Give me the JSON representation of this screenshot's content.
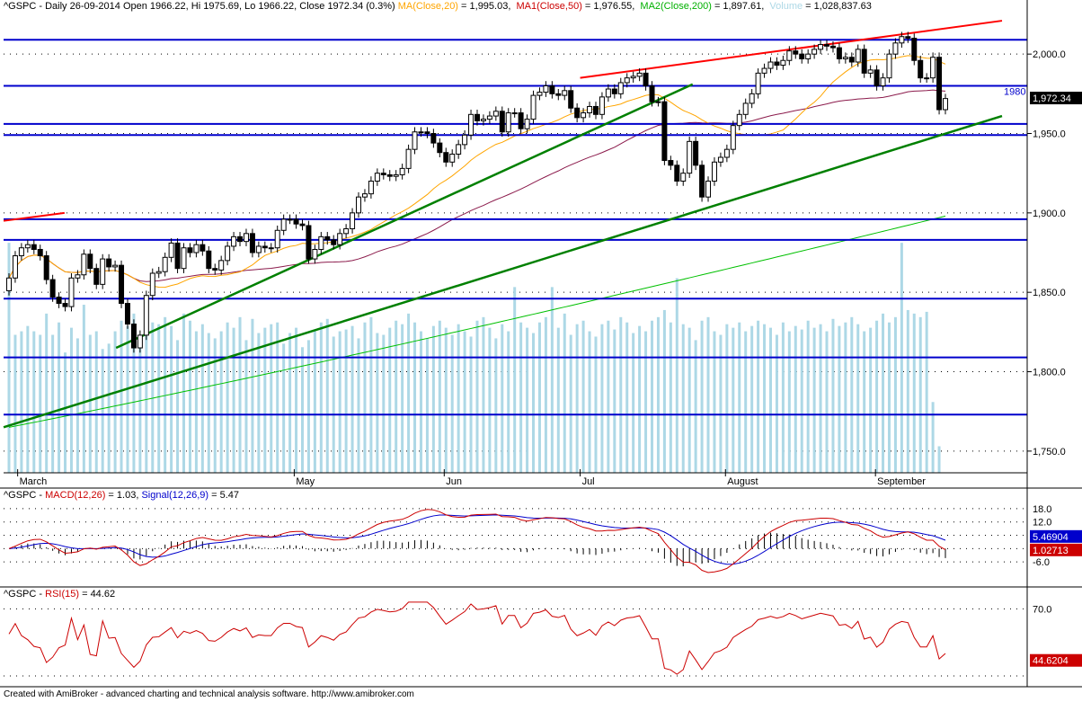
{
  "header": {
    "ticker": "^GSPC - Daily 26-09-2014 Open 1966.22, Hi 1975.69, Lo 1966.22, Close 1972.34 (0.3%)",
    "ma": "MA(Close,20)",
    "ma_value": " = 1,995.03, ",
    "ma1": "MA1(Close,50)",
    "ma1_value": " = 1,976.55, ",
    "ma2": "MA2(Close,200)",
    "ma2_value": " = 1,897.61, ",
    "volume": "Volume",
    "volume_value": " = 1,028,837.63"
  },
  "macd_header": {
    "prefix": "^GSPC - ",
    "macd": "MACD(12,26)",
    "macd_value": " = 1.03, ",
    "signal": "Signal(12,26,9)",
    "signal_value": " = 5.47"
  },
  "rsi_header": {
    "prefix": "^GSPC - ",
    "rsi": "RSI(15)",
    "rsi_value": " = 44.62"
  },
  "footer": "Created with AmiBroker - advanced charting and technical analysis software. http://www.amibroker.com",
  "colors": {
    "ma20": "#ffa500",
    "ma50": "#8b1a4b",
    "ma200": "#00c000",
    "volume": "#add8e6",
    "support": "#0000cc",
    "trend_green": "#008000",
    "trend_red": "#ff0000",
    "macd": "#cc0000",
    "signal": "#0000cc",
    "rsi": "#cc0000"
  },
  "chart_data": [
    {
      "type": "candlestick",
      "y_ticks": [
        "2,000.0",
        "1,950.0",
        "1,900.0",
        "1,850.0",
        "1,800.0",
        "1,750.0"
      ],
      "x_months": [
        "March",
        "May",
        "Jun",
        "Jul",
        "August",
        "September"
      ],
      "ylim": [
        1742,
        2025
      ],
      "close_label": "1,972.34",
      "level_label": "1980",
      "horizontal_levels": [
        2009,
        1980,
        1956,
        1949,
        1896,
        1883,
        1846,
        1809,
        1773
      ],
      "trendlines_green": [
        {
          "from": [
            "2014-03-24",
            1815
          ],
          "to": [
            "2014-07-25",
            1981
          ]
        },
        {
          "from": [
            "2014-02-28",
            1765
          ],
          "to": [
            "2014-09-29",
            1961
          ]
        }
      ],
      "trendlines_red": [
        {
          "from": [
            "2014-02-28",
            1895
          ],
          "to": [
            "2014-03-13",
            1900
          ]
        },
        {
          "from": [
            "2014-07-01",
            1985
          ],
          "to": [
            "2014-09-29",
            2021
          ]
        }
      ],
      "closes": [
        1859,
        1873,
        1878,
        1880,
        1877,
        1873,
        1858,
        1847,
        1843,
        1841,
        1859,
        1861,
        1874,
        1865,
        1855,
        1871,
        1866,
        1867,
        1843,
        1830,
        1815,
        1823,
        1848,
        1862,
        1863,
        1872,
        1881,
        1865,
        1878,
        1875,
        1880,
        1876,
        1865,
        1864,
        1870,
        1879,
        1885,
        1882,
        1887,
        1875,
        1879,
        1878,
        1878,
        1889,
        1896,
        1896,
        1893,
        1892,
        1871,
        1877,
        1885,
        1883,
        1880,
        1887,
        1890,
        1900,
        1910,
        1912,
        1920,
        1925,
        1924,
        1923,
        1924,
        1928,
        1940,
        1951,
        1951,
        1950,
        1944,
        1938,
        1932,
        1937,
        1943,
        1949,
        1962,
        1958,
        1959,
        1961,
        1964,
        1951,
        1963,
        1963,
        1953,
        1959,
        1974,
        1976,
        1980,
        1975,
        1974,
        1977,
        1966,
        1960,
        1963,
        1967,
        1962,
        1973,
        1978,
        1975,
        1982,
        1985,
        1986,
        1988,
        1980,
        1970,
        1970,
        1933,
        1930,
        1920,
        1925,
        1945,
        1930,
        1910,
        1920,
        1932,
        1935,
        1940,
        1955,
        1962,
        1969,
        1975,
        1988,
        1991,
        1995,
        1993,
        1996,
        2002,
        2000,
        1997,
        2000,
        2003,
        2006,
        2005,
        2004,
        1997,
        1998,
        1995,
        2003,
        1988,
        1990,
        1980,
        1985,
        2000,
        2007,
        2011,
        2010,
        1996,
        1985,
        1985,
        1998,
        1965,
        1972
      ],
      "volume_relative": [
        1.3,
        0.78,
        0.8,
        0.83,
        0.8,
        0.78,
        0.9,
        0.78,
        0.85,
        0.68,
        0.82,
        0.76,
        0.95,
        0.78,
        0.8,
        0.7,
        0.73,
        0.8,
        0.86,
        0.83,
        0.9,
        0.78,
        0.81,
        0.85,
        0.84,
        0.88,
        0.83,
        0.75,
        0.9,
        0.86,
        0.8,
        0.84,
        0.79,
        0.76,
        0.8,
        0.85,
        0.82,
        0.88,
        0.75,
        0.87,
        0.79,
        0.82,
        0.84,
        0.85,
        0.73,
        0.79,
        0.82,
        0.71,
        0.75,
        0.8,
        0.85,
        0.87,
        0.77,
        0.8,
        0.81,
        0.83,
        0.76,
        0.85,
        0.88,
        0.79,
        0.78,
        0.82,
        0.86,
        0.84,
        0.9,
        0.85,
        0.8,
        0.76,
        0.83,
        0.86,
        0.82,
        0.78,
        0.84,
        0.8,
        0.77,
        0.86,
        0.88,
        0.82,
        0.76,
        0.84,
        0.8,
        1.05,
        0.85,
        0.82,
        0.79,
        0.85,
        0.88,
        1.05,
        0.82,
        0.9,
        0.78,
        0.84,
        0.86,
        0.8,
        0.77,
        0.84,
        0.86,
        0.81,
        0.88,
        0.85,
        0.79,
        0.83,
        0.8,
        0.86,
        0.88,
        0.92,
        0.85,
        1.1,
        0.84,
        0.82,
        0.75,
        0.86,
        0.88,
        0.8,
        0.78,
        0.84,
        0.82,
        0.85,
        0.8,
        0.83,
        0.86,
        0.84,
        0.82,
        0.78,
        0.85,
        0.8,
        0.83,
        0.81,
        0.86,
        0.82,
        0.84,
        0.8,
        0.87,
        0.83,
        0.85,
        0.88,
        0.84,
        0.8,
        0.82,
        0.86,
        0.9,
        0.85,
        0.88,
        1.3,
        0.92,
        0.9,
        0.88,
        0.91,
        0.4,
        0.15
      ],
      "ma200_start": 1765,
      "ma200_end": 1898
    },
    {
      "type": "line",
      "name": "MACD",
      "y_ticks": [
        "18.0",
        "12.0",
        "-6.0"
      ],
      "macd_label": "1.02713",
      "signal_label": "5.46904",
      "ylim": [
        -12,
        22
      ]
    },
    {
      "type": "line",
      "name": "RSI",
      "y_ticks": [
        "70.0"
      ],
      "rsi_label": "44.6204",
      "ylim": [
        30,
        75
      ]
    }
  ]
}
